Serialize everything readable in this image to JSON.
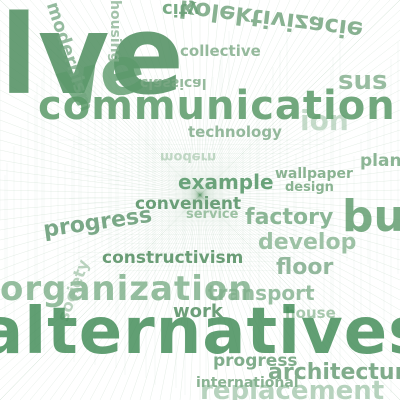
{
  "scene": {
    "background": "#ffffff",
    "ink": "#4e8e5f"
  },
  "words": {
    "communication": "communication",
    "technology": "technology",
    "example": "example",
    "convenient": "convenient",
    "service": "service",
    "factory": "factory",
    "progress_1": "progress",
    "develop": "develop",
    "constructivism": "constructivism",
    "floor": "floor",
    "organization": "organization",
    "transport": "transport",
    "work": "work",
    "house": "house",
    "alternatives": "alternatives",
    "progress_2": "progress",
    "international": "international",
    "architecture": "architecture",
    "replacement": "replacement",
    "plan": "plan",
    "wallpaper": "wallpaper",
    "design": "design",
    "big_l": "lve",
    "big_v": "ve",
    "big_b": "bu",
    "sustain": "sus",
    "mirror_top": "kolektivizacie",
    "mirror_top2": "collective",
    "mirror_left": "classical",
    "top_frag": "city",
    "vert_left": "modernism",
    "vert_top": "housing",
    "bottom_vert": "society",
    "faint_1": "ion",
    "faint_2": "modern"
  }
}
